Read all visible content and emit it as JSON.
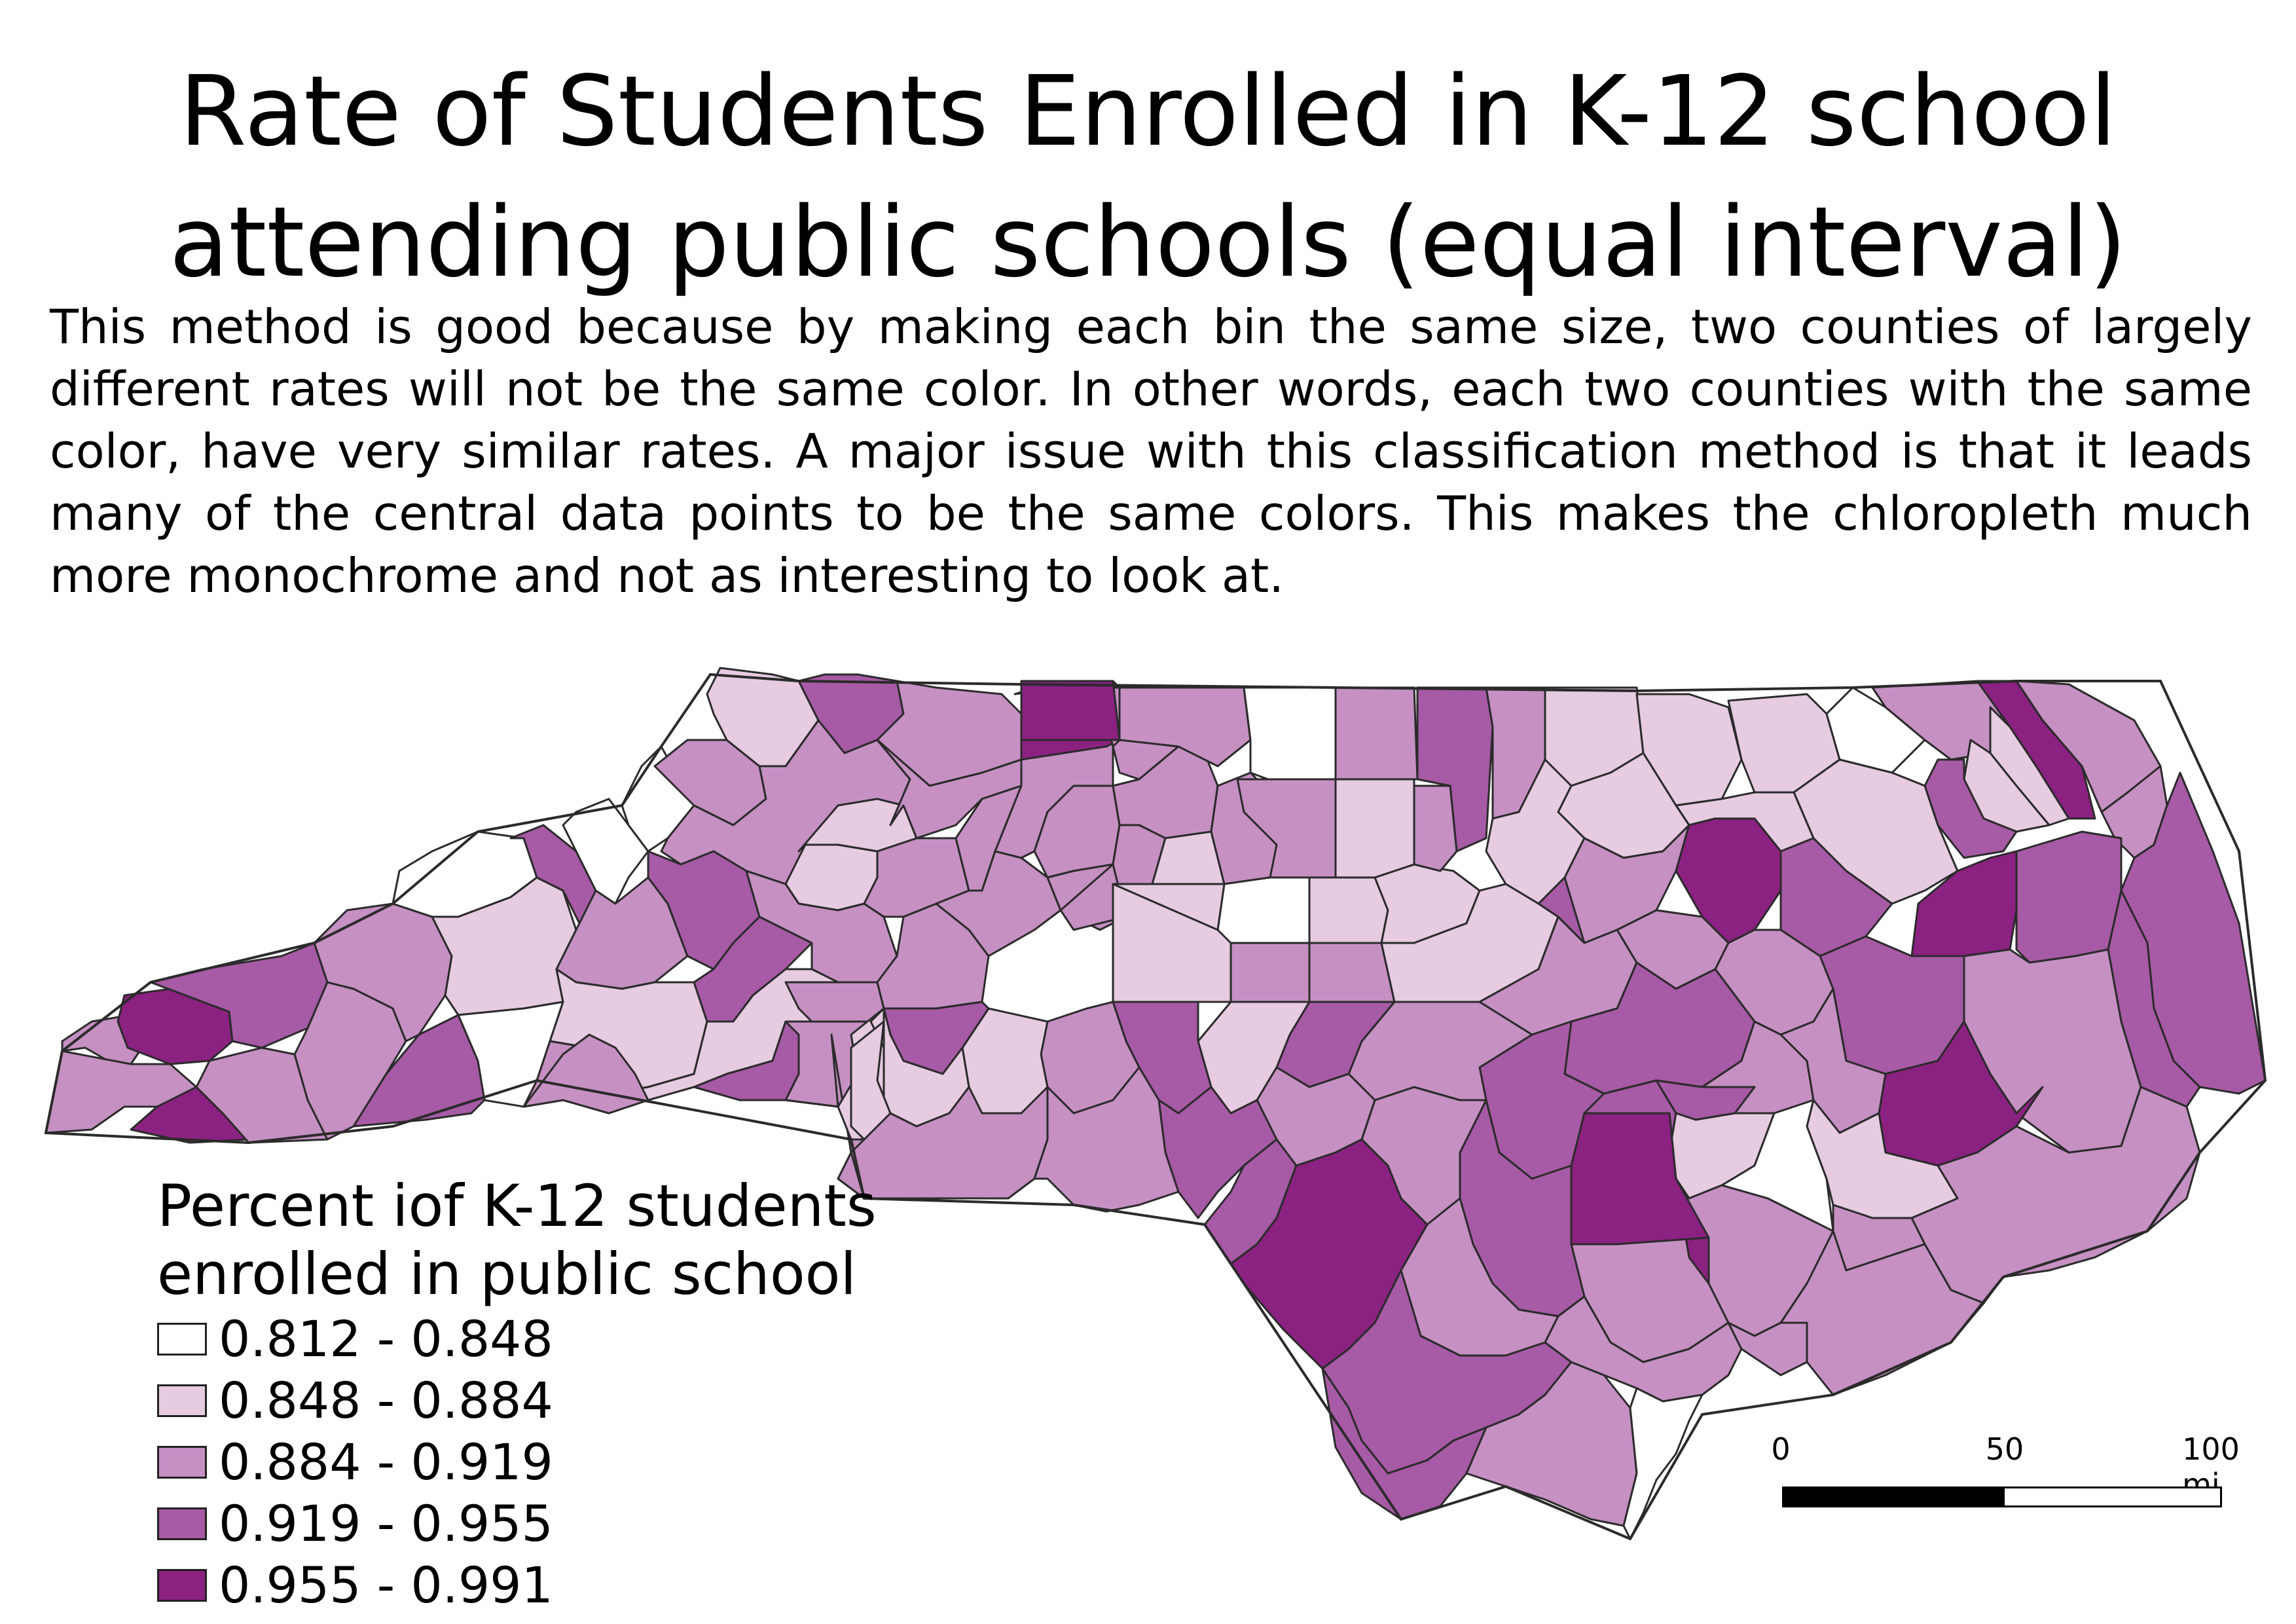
{
  "title": "Rate of Students Enrolled in K-12 school attending public schools (equal interval)",
  "description": "This method is good because by making each bin the same size, two counties of largely different rates will not be the same color. In other words, each two counties with the same color, have very similar rates.  A major issue with this classification method is that it leads many of the central data points to be the same colors. This makes the chloropleth much more monochrome and not as interesting to look at.",
  "legend": {
    "title": "Percent iof K-12 students\nenrolled in public school",
    "classes": [
      {
        "label": "0.812 - 0.848",
        "color": "#ffffff"
      },
      {
        "label": "0.848 - 0.884",
        "color": "#e6cbe1"
      },
      {
        "label": "0.884 - 0.919",
        "color": "#c690c3"
      },
      {
        "label": "0.919 - 0.955",
        "color": "#a75aa5"
      },
      {
        "label": "0.955 - 0.991",
        "color": "#8b2181"
      }
    ]
  },
  "scale_bar": {
    "ticks": [
      "0",
      "50",
      "100 mi"
    ]
  },
  "colors": {
    "outline": "#2b2b2b",
    "background": "#ffffff"
  }
}
